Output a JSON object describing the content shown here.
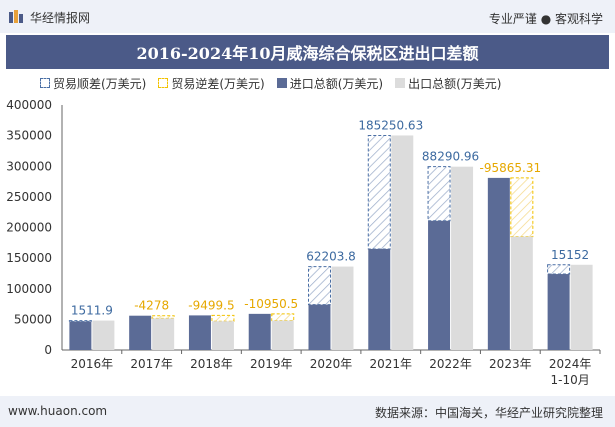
{
  "header": {
    "brand": "华经情报网",
    "tagline": "专业严谨 ● 客观科学"
  },
  "title": "2016-2024年10月威海综合保税区进出口差额",
  "legend": {
    "surplus": "贸易顺差(万美元)",
    "deficit": "贸易逆差(万美元)",
    "import": "进口总额(万美元)",
    "export": "出口总额(万美元)"
  },
  "footer": {
    "url": "www.huaon.com",
    "source": "数据来源：中国海关，华经产业研究院整理"
  },
  "colors": {
    "import": "#5b6b96",
    "export": "#dcdcdc",
    "surplus": "#4a6fa5",
    "deficit": "#f2c200"
  },
  "chart_data": {
    "type": "bar",
    "categories": [
      "2016年",
      "2017年",
      "2018年",
      "2019年",
      "2020年",
      "2021年",
      "2022年",
      "2023年",
      "2024年\n1-10月"
    ],
    "ylim": [
      0,
      400000
    ],
    "yticks": [
      0,
      50000,
      100000,
      150000,
      200000,
      250000,
      300000,
      350000,
      400000
    ],
    "series": [
      {
        "name": "进口总额(万美元)",
        "values": [
          46500,
          56000,
          56500,
          59000,
          74000,
          165000,
          211000,
          281000,
          124000
        ]
      },
      {
        "name": "出口总额(万美元)",
        "values": [
          48012,
          51722,
          47000,
          48049,
          136204,
          350251,
          299291,
          185135,
          139152
        ]
      }
    ],
    "balance": {
      "values": [
        1511.9,
        -4278,
        -9499.5,
        -10950.5,
        62203.8,
        185250.63,
        88290.96,
        -95865.31,
        15152
      ],
      "labels": [
        "1511.9",
        "-4278",
        "-9499.5",
        "-10950.5",
        "62203.8",
        "185250.63",
        "88290.96",
        "-95865.31",
        "15152"
      ]
    }
  }
}
